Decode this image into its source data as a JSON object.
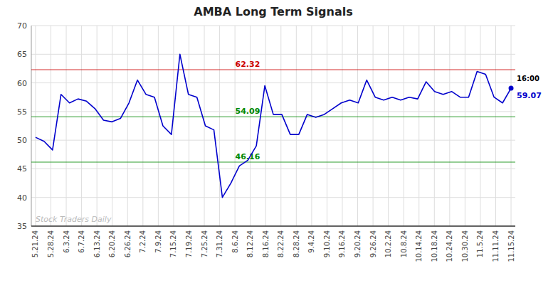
{
  "chart_data": {
    "type": "line",
    "title": "AMBA Long Term Signals",
    "x": [
      0,
      1,
      2,
      3,
      4,
      5,
      6,
      7,
      8,
      9,
      10,
      11,
      12,
      13,
      14,
      15,
      16,
      17,
      18,
      19,
      20,
      21,
      22,
      23,
      24,
      25,
      26,
      27,
      28,
      29,
      30,
      31,
      32,
      33,
      34,
      35,
      36,
      37,
      38,
      39,
      40,
      41,
      42,
      43,
      44,
      45,
      46,
      47,
      48,
      49,
      50,
      51,
      52,
      53,
      54,
      55,
      56
    ],
    "values": [
      50.5,
      49.8,
      48.3,
      58.0,
      56.5,
      57.2,
      56.8,
      55.5,
      53.5,
      53.2,
      53.8,
      56.5,
      60.5,
      58.0,
      57.5,
      52.5,
      51.0,
      65.0,
      58.0,
      57.5,
      52.5,
      51.8,
      40.0,
      42.5,
      45.5,
      46.5,
      49.0,
      59.5,
      54.5,
      54.5,
      51.0,
      51.0,
      54.5,
      54.0,
      54.5,
      55.5,
      56.5,
      57.0,
      56.5,
      60.5,
      57.5,
      57.0,
      57.5,
      57.0,
      57.5,
      57.2,
      60.2,
      58.5,
      58.0,
      58.5,
      57.5,
      57.5,
      62.0,
      61.5,
      57.5,
      56.5,
      59.07
    ],
    "color": "#0000cc",
    "xlim": [
      -0.5,
      56.5
    ],
    "xticks": [
      {
        "value": 0,
        "label": "5.21.24"
      },
      {
        "value": 1.8065,
        "label": "5.28.24"
      },
      {
        "value": 3.6129,
        "label": "6.3.24"
      },
      {
        "value": 5.4194,
        "label": "6.7.24"
      },
      {
        "value": 7.2258,
        "label": "6.13.24"
      },
      {
        "value": 9.0323,
        "label": "6.20.24"
      },
      {
        "value": 10.8387,
        "label": "6.26.24"
      },
      {
        "value": 12.6452,
        "label": "7.2.24"
      },
      {
        "value": 14.4516,
        "label": "7.9.24"
      },
      {
        "value": 16.2581,
        "label": "7.15.24"
      },
      {
        "value": 18.0645,
        "label": "7.19.24"
      },
      {
        "value": 19.871,
        "label": "7.25.24"
      },
      {
        "value": 21.6774,
        "label": "7.31.24"
      },
      {
        "value": 23.4839,
        "label": "8.6.24"
      },
      {
        "value": 25.2903,
        "label": "8.12.24"
      },
      {
        "value": 27.0968,
        "label": "8.16.24"
      },
      {
        "value": 28.9032,
        "label": "8.22.24"
      },
      {
        "value": 30.7097,
        "label": "8.28.24"
      },
      {
        "value": 32.5161,
        "label": "9.4.24"
      },
      {
        "value": 34.3226,
        "label": "9.10.24"
      },
      {
        "value": 36.129,
        "label": "9.16.24"
      },
      {
        "value": 37.9355,
        "label": "9.20.24"
      },
      {
        "value": 39.7419,
        "label": "9.26.24"
      },
      {
        "value": 41.5484,
        "label": "10.2.24"
      },
      {
        "value": 43.3548,
        "label": "10.8.24"
      },
      {
        "value": 45.1613,
        "label": "10.14.24"
      },
      {
        "value": 46.9677,
        "label": "10.18.24"
      },
      {
        "value": 48.7742,
        "label": "10.24.24"
      },
      {
        "value": 50.5806,
        "label": "10.30.24"
      },
      {
        "value": 52.3871,
        "label": "11.5.24"
      },
      {
        "value": 54.1935,
        "label": "11.11.24"
      },
      {
        "value": 56,
        "label": "11.15.24"
      }
    ],
    "ylim": [
      35,
      70
    ],
    "yticks": [
      35,
      40,
      45,
      50,
      55,
      60,
      65,
      70
    ],
    "grid": true,
    "reference_lines": [
      {
        "value": 62.32,
        "label": "62.32",
        "color": "#cc0000"
      },
      {
        "value": 54.09,
        "label": "54.09",
        "color": "#008800"
      },
      {
        "value": 46.16,
        "label": "46.16",
        "color": "#008800"
      }
    ],
    "annotations": [
      "16:00",
      "59.07",
      "Stock Traders Daily"
    ]
  }
}
